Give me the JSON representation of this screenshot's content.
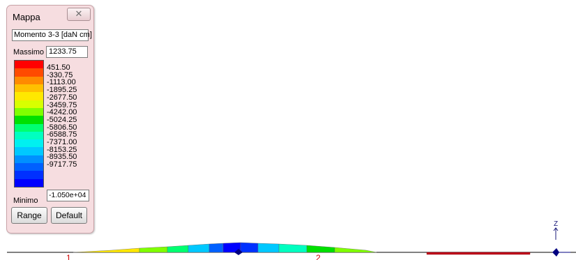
{
  "palette": {
    "title": "Mappa",
    "close_glyph": "✕",
    "quantity": "Momento 3-3 [daN cm]",
    "max_label": "Massimo",
    "max_value": "1233.75",
    "min_label": "Minimo",
    "min_value": "-1.050e+04",
    "range_button": "Range",
    "default_button": "Default",
    "scale_colors": [
      "#ff0000",
      "#ff4a00",
      "#ff8a00",
      "#ffc000",
      "#ffe800",
      "#d8ff00",
      "#80ff00",
      "#00e000",
      "#00ff70",
      "#00ffc0",
      "#00f0f0",
      "#00c8ff",
      "#0090ff",
      "#0060ff",
      "#0030ff",
      "#0000ff"
    ],
    "scale_values": [
      "451.50",
      "-330.75",
      "-1113.00",
      "-1895.25",
      "-2677.50",
      "-3459.75",
      "-4242.00",
      "-5024.25",
      "-5806.50",
      "-6588.75",
      "-7371.00",
      "-8153.25",
      "-8935.50",
      "-9717.75"
    ]
  },
  "model": {
    "node_labels": [
      "1",
      "2"
    ],
    "axis_label": "Z"
  }
}
